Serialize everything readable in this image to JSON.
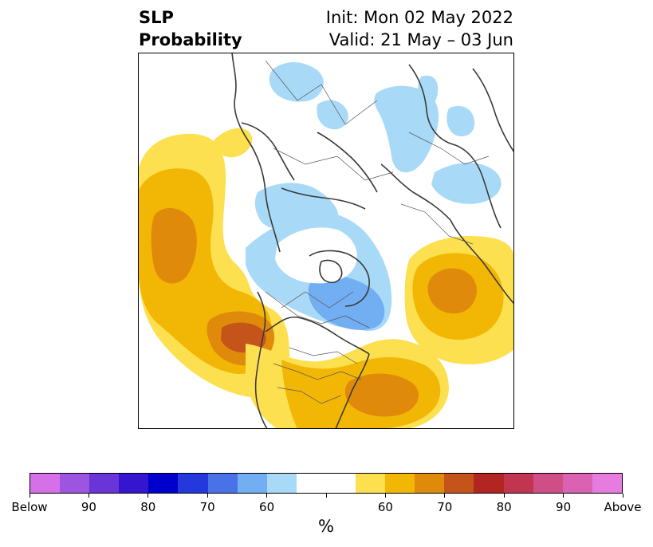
{
  "title": {
    "left_line1": "SLP",
    "left_line2": "Probability",
    "right_line1": "Init: Mon 02 May 2022",
    "right_line2": "Valid: 21 May – 03 Jun"
  },
  "colorbar": {
    "colors": [
      "#d670e8",
      "#9b55e0",
      "#6a35d8",
      "#3515d0",
      "#0000cc",
      "#2438dd",
      "#4a72e8",
      "#72aef2",
      "#a8daf8",
      "#ffffff",
      "#ffffff",
      "#fde050",
      "#f2b705",
      "#e08a0b",
      "#c4541a",
      "#b22522",
      "#c23550",
      "#cf4e86",
      "#db62b3",
      "#e67ce0"
    ],
    "tick_labels": [
      "Below",
      "90",
      "80",
      "70",
      "60",
      "",
      "60",
      "70",
      "80",
      "90",
      "Above"
    ],
    "unit": "%"
  },
  "map": {
    "colors": {
      "light_yellow": "#fde050",
      "yellow_orange": "#f2b705",
      "orange": "#e08a0b",
      "dark_orange": "#c4541a",
      "light_blue": "#a8daf8",
      "medium_blue": "#72aef2",
      "coastline": "#3a3a3a"
    }
  }
}
